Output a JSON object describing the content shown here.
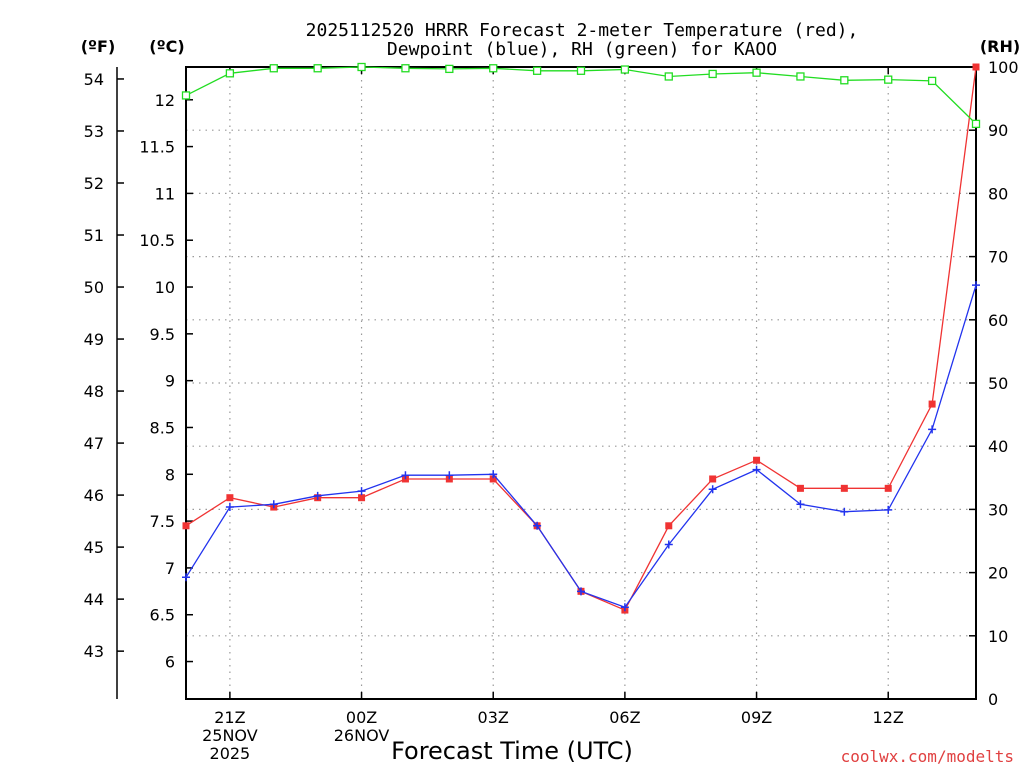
{
  "chart_data": {
    "type": "line",
    "title_line1": "2025112520 HRRR Forecast 2-meter Temperature (red),",
    "title_line2": "Dewpoint (blue), RH (green) for KAOO",
    "xlabel": "Forecast Time (UTC)",
    "credit": "coolwx.com/modelts",
    "axis_units": {
      "fahrenheit": "(ºF)",
      "celsius": "(ºC)",
      "rh": "(RH)"
    },
    "x": [
      20,
      21,
      22,
      23,
      24,
      25,
      26,
      27,
      28,
      29,
      30,
      31,
      32,
      33,
      34,
      35,
      36,
      37,
      38
    ],
    "x_range": [
      20,
      38
    ],
    "celsius_range": [
      5.6,
      12.35
    ],
    "rh_range": [
      0,
      100
    ],
    "x_ticks": [
      {
        "x": 21,
        "lines": [
          "21Z",
          "25NOV",
          "2025"
        ]
      },
      {
        "x": 24,
        "lines": [
          "00Z",
          "26NOV"
        ]
      },
      {
        "x": 27,
        "lines": [
          "03Z"
        ]
      },
      {
        "x": 30,
        "lines": [
          "06Z"
        ]
      },
      {
        "x": 33,
        "lines": [
          "09Z"
        ]
      },
      {
        "x": 36,
        "lines": [
          "12Z"
        ]
      }
    ],
    "fahrenheit_ticks": [
      "43",
      "44",
      "45",
      "46",
      "47",
      "48",
      "49",
      "50",
      "51",
      "52",
      "53",
      "54"
    ],
    "celsius_ticks": [
      "6",
      "6.5",
      "7",
      "7.5",
      "8",
      "8.5",
      "9",
      "9.5",
      "10",
      "10.5",
      "11",
      "11.5",
      "12"
    ],
    "rh_ticks": [
      "0",
      "10",
      "20",
      "30",
      "40",
      "50",
      "60",
      "70",
      "80",
      "90",
      "100"
    ],
    "grid": true,
    "series": [
      {
        "name": "Temperature",
        "axis": "celsius",
        "color": "#f03333",
        "marker": "filled-square",
        "values": [
          7.45,
          7.75,
          7.65,
          7.75,
          7.75,
          7.95,
          7.95,
          7.95,
          7.45,
          6.75,
          6.55,
          7.45,
          7.95,
          8.15,
          7.85,
          7.85,
          7.85,
          8.75,
          12.35
        ]
      },
      {
        "name": "Dewpoint",
        "axis": "celsius",
        "color": "#2233ee",
        "marker": "plus",
        "values": [
          6.9,
          7.65,
          7.68,
          7.77,
          7.82,
          7.99,
          7.99,
          8.0,
          7.45,
          6.75,
          6.58,
          7.25,
          7.84,
          8.05,
          7.68,
          7.6,
          7.62,
          8.48,
          10.02
        ]
      },
      {
        "name": "RH",
        "axis": "rh",
        "color": "#22dd22",
        "marker": "open-square",
        "values": [
          95.5,
          99.0,
          99.8,
          99.8,
          100.0,
          99.8,
          99.7,
          99.8,
          99.4,
          99.4,
          99.6,
          98.5,
          98.9,
          99.1,
          98.5,
          97.9,
          98.0,
          97.8,
          91.0
        ]
      }
    ]
  }
}
